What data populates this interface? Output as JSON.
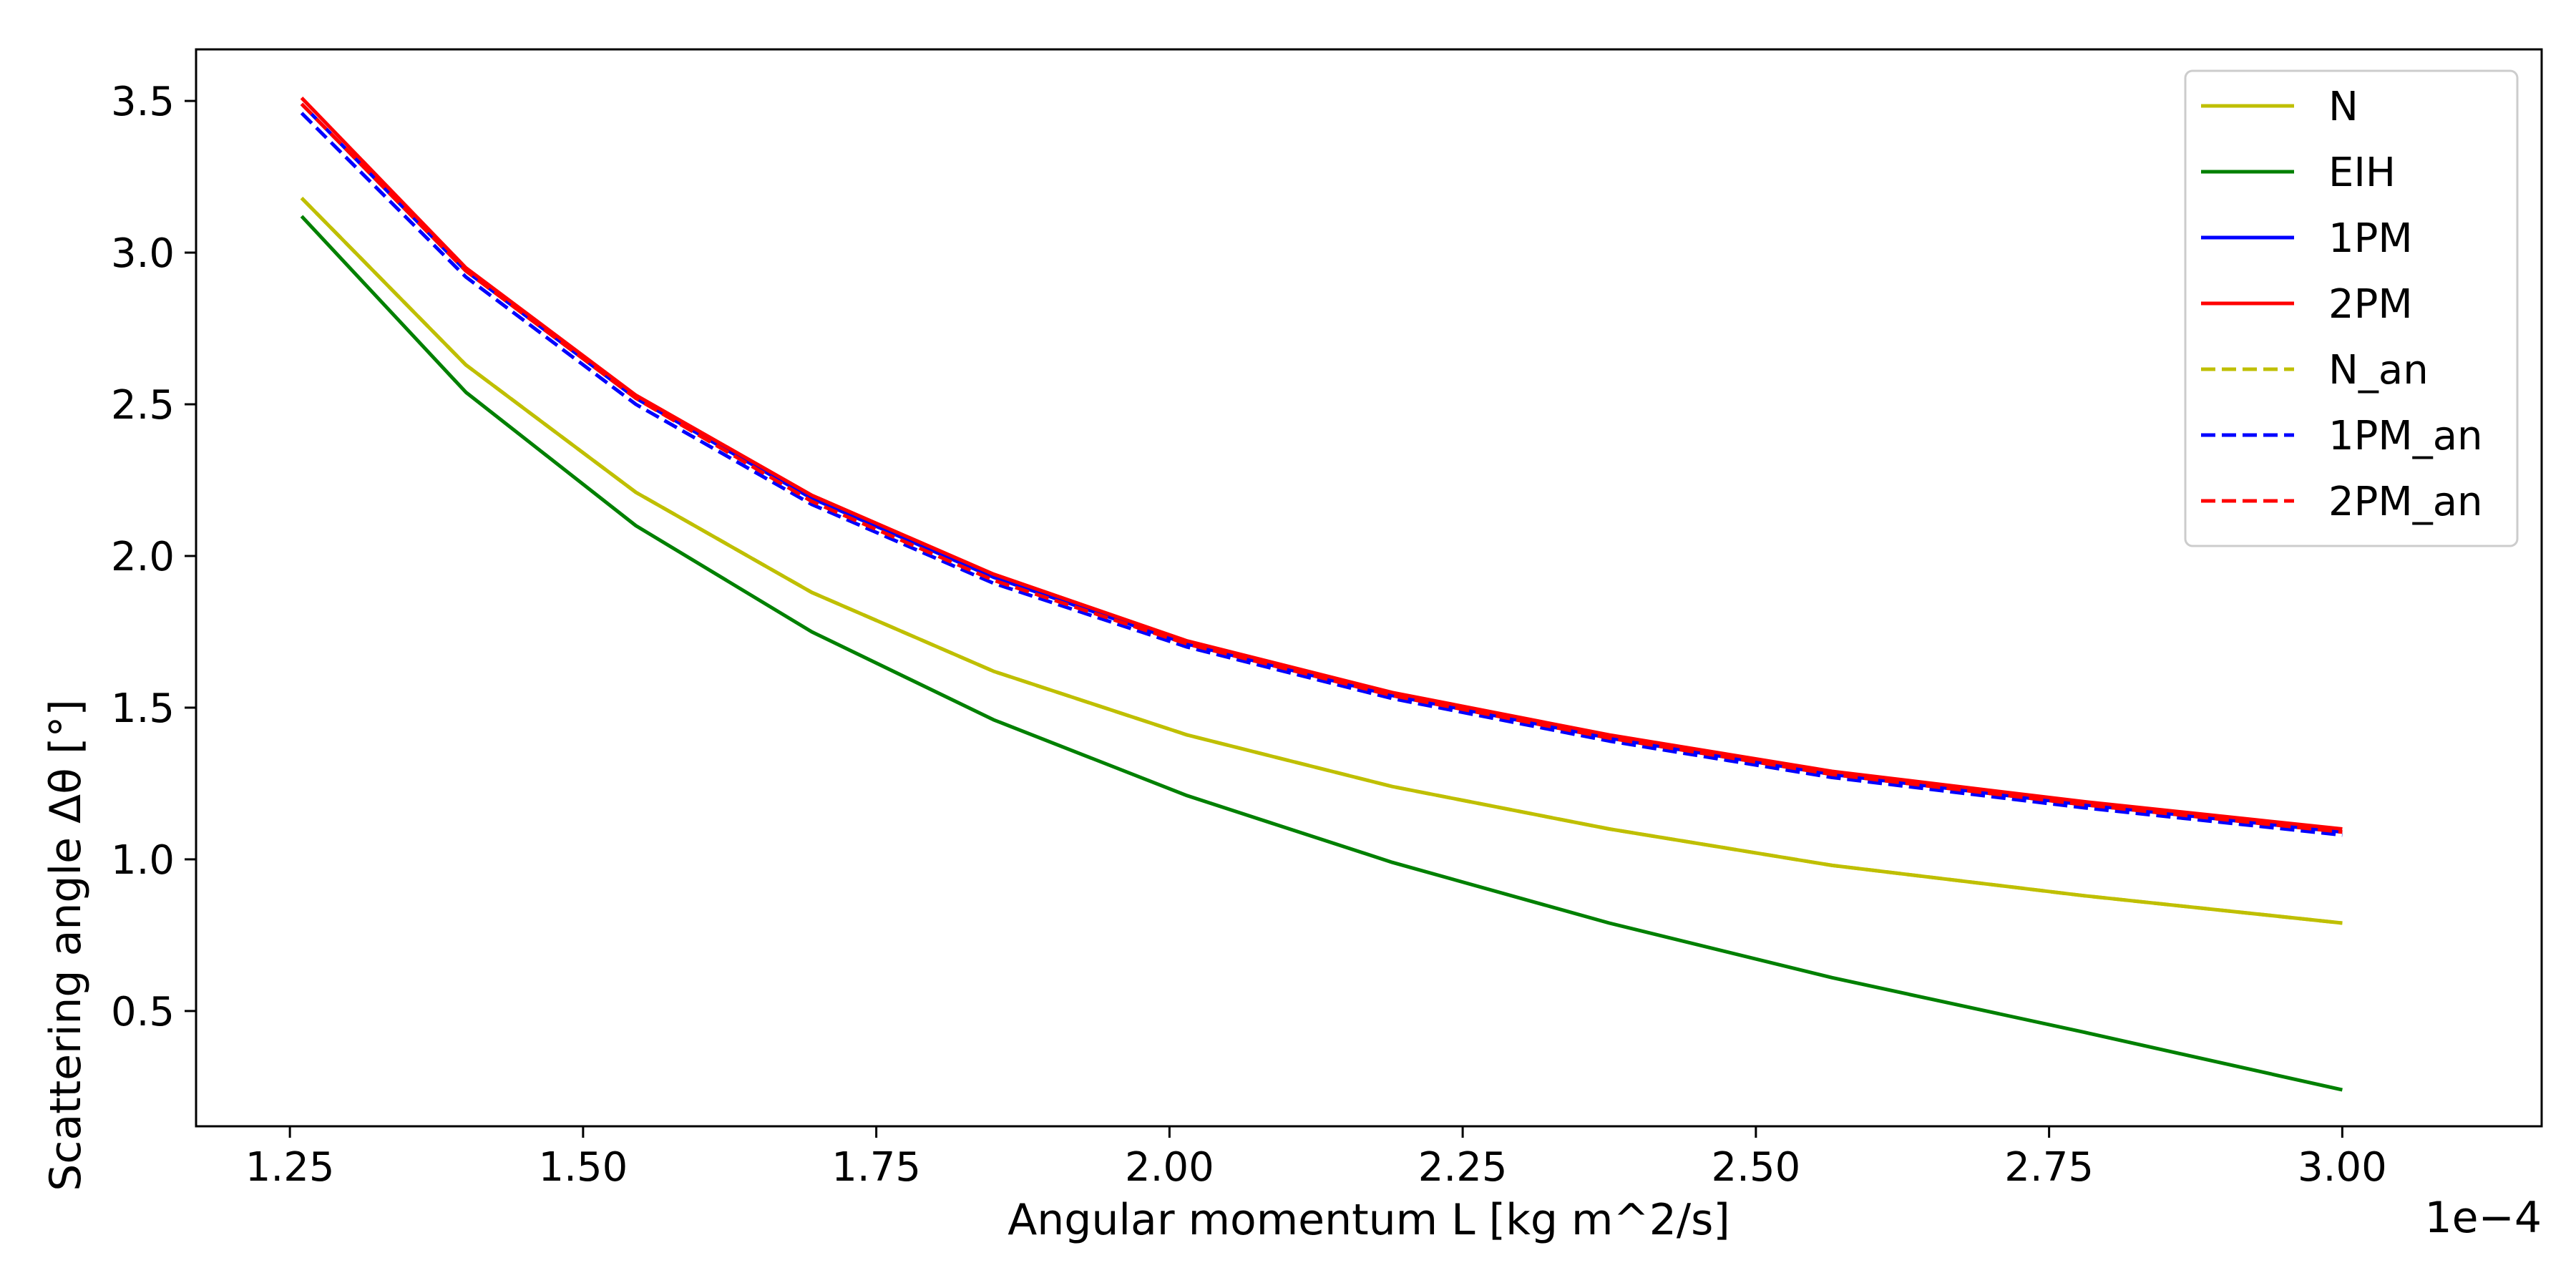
{
  "chart_data": {
    "type": "line",
    "title": "",
    "xlabel": "Angular momentum L [kg m^2/s]",
    "ylabel": "Scattering angle Δθ [°]",
    "x_offset_label": "1e−4",
    "x_scale_factor": 0.0001,
    "xlim": [
      1.17,
      3.17
    ],
    "ylim": [
      0.12,
      3.67
    ],
    "x_ticks": [
      1.25,
      1.5,
      1.75,
      2.0,
      2.25,
      2.5,
      2.75,
      3.0
    ],
    "x_tick_labels": [
      "1.25",
      "1.50",
      "1.75",
      "2.00",
      "2.25",
      "2.50",
      "2.75",
      "3.00"
    ],
    "y_ticks": [
      0.5,
      1.0,
      1.5,
      2.0,
      2.5,
      3.0,
      3.5
    ],
    "y_tick_labels": [
      "0.5",
      "1.0",
      "1.5",
      "2.0",
      "2.5",
      "3.0",
      "3.5"
    ],
    "grid": false,
    "legend_position": "top-right",
    "x": [
      1.26,
      1.4,
      1.545,
      1.695,
      1.85,
      2.015,
      2.19,
      2.375,
      2.565,
      2.78,
      3.0
    ],
    "series": [
      {
        "name": "N",
        "color": "#bfbf00",
        "dash": "solid",
        "values": [
          3.18,
          2.63,
          2.21,
          1.88,
          1.62,
          1.41,
          1.24,
          1.1,
          0.98,
          0.88,
          0.79
        ]
      },
      {
        "name": "EIH",
        "color": "#008000",
        "dash": "solid",
        "values": [
          3.12,
          2.54,
          2.1,
          1.75,
          1.46,
          1.21,
          0.99,
          0.79,
          0.61,
          0.43,
          0.24
        ]
      },
      {
        "name": "1PM",
        "color": "#0000ff",
        "dash": "solid",
        "values": [
          3.49,
          2.94,
          2.52,
          2.19,
          1.93,
          1.71,
          1.54,
          1.4,
          1.28,
          1.18,
          1.09
        ]
      },
      {
        "name": "2PM",
        "color": "#ff0000",
        "dash": "solid",
        "values": [
          3.51,
          2.95,
          2.53,
          2.2,
          1.94,
          1.72,
          1.55,
          1.41,
          1.29,
          1.19,
          1.1
        ]
      },
      {
        "name": "N_an",
        "color": "#bfbf00",
        "dash": "dashed",
        "values": [
          3.18,
          2.63,
          2.21,
          1.88,
          1.62,
          1.41,
          1.24,
          1.1,
          0.98,
          0.88,
          0.79
        ]
      },
      {
        "name": "1PM_an",
        "color": "#0000ff",
        "dash": "dashed",
        "values": [
          3.46,
          2.92,
          2.5,
          2.17,
          1.91,
          1.7,
          1.53,
          1.39,
          1.27,
          1.17,
          1.08
        ]
      },
      {
        "name": "2PM_an",
        "color": "#ff0000",
        "dash": "dashed",
        "values": [
          3.49,
          2.94,
          2.52,
          2.18,
          1.92,
          1.71,
          1.54,
          1.4,
          1.28,
          1.18,
          1.09
        ]
      }
    ]
  }
}
